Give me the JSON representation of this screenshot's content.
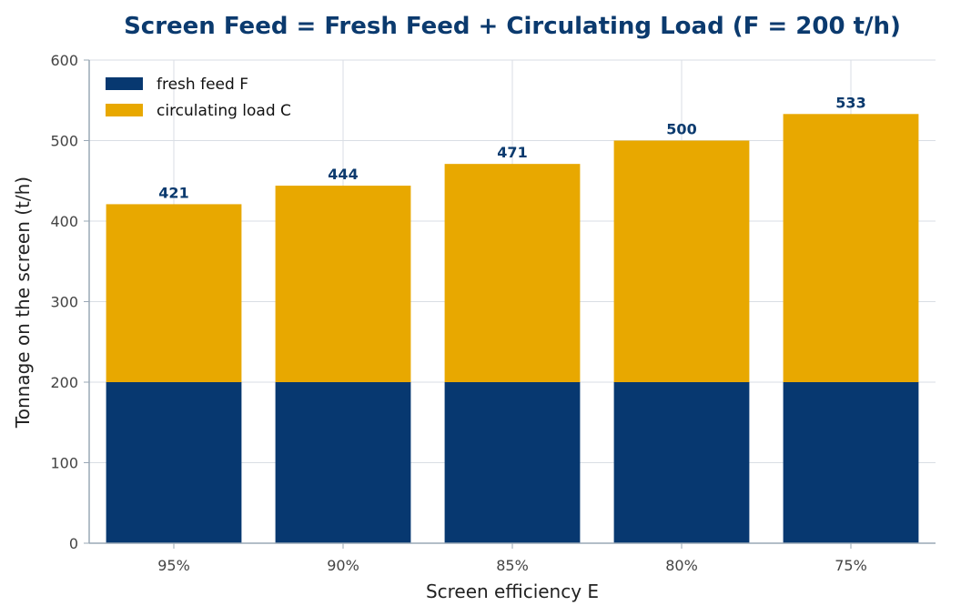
{
  "chart_data": {
    "type": "bar",
    "stacked": true,
    "title": "Screen Feed = Fresh Feed + Circulating Load (F = 200 t/h)",
    "xlabel": "Screen efficiency  E",
    "ylabel": "Tonnage on the screen  (t/h)",
    "categories": [
      "95%",
      "90%",
      "85%",
      "80%",
      "75%"
    ],
    "series": [
      {
        "name": "fresh feed F",
        "values": [
          200,
          200,
          200,
          200,
          200
        ],
        "color": "#073870"
      },
      {
        "name": "circulating load C",
        "values": [
          221,
          244,
          271,
          300,
          333
        ],
        "color": "#e8a800"
      }
    ],
    "totals": [
      "421",
      "444",
      "471",
      "500",
      "533"
    ],
    "ylim": [
      0,
      600
    ],
    "yticks": [
      "0",
      "100",
      "200",
      "300",
      "400",
      "500",
      "600"
    ],
    "grid": true,
    "legend_position": "top-left"
  }
}
